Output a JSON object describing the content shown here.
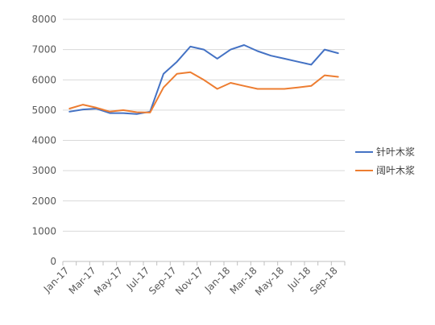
{
  "chart_data": {
    "type": "line",
    "title": "",
    "xlabel": "",
    "ylabel": "",
    "ylim": [
      0,
      8000
    ],
    "yticks": [
      0,
      1000,
      2000,
      3000,
      4000,
      5000,
      6000,
      7000,
      8000
    ],
    "ytick_labels": [
      "0",
      "1000",
      "2000",
      "3000",
      "4000",
      "5000",
      "6000",
      "7000",
      "8000"
    ],
    "categories": [
      "Jan-17",
      "Feb-17",
      "Mar-17",
      "Apr-17",
      "May-17",
      "Jun-17",
      "Jul-17",
      "Aug-17",
      "Sep-17",
      "Oct-17",
      "Nov-17",
      "Dec-17",
      "Jan-18",
      "Feb-18",
      "Mar-18",
      "Apr-18",
      "May-18",
      "Jun-18",
      "Jul-18",
      "Aug-18",
      "Sep-18"
    ],
    "xtick_labels": [
      "Jan-17",
      "Mar-17",
      "May-17",
      "Jul-17",
      "Sep-17",
      "Nov-17",
      "Jan-18",
      "Mar-18",
      "May-18",
      "Jul-18",
      "Sep-18"
    ],
    "grid": true,
    "legend_position": "right",
    "series": [
      {
        "name": "针叶木浆",
        "color": "#4472C4",
        "values": [
          4950,
          5020,
          5050,
          4900,
          4900,
          4870,
          4950,
          6200,
          6600,
          7100,
          7000,
          6700,
          7000,
          7150,
          6950,
          6800,
          6700,
          6600,
          6500,
          7000,
          6880
        ]
      },
      {
        "name": "阔叶木浆",
        "color": "#ED7D31",
        "values": [
          5050,
          5180,
          5080,
          4950,
          5000,
          4930,
          4920,
          5750,
          6200,
          6250,
          6000,
          5700,
          5900,
          5800,
          5700,
          5700,
          5700,
          5750,
          5800,
          6150,
          6100
        ]
      }
    ]
  }
}
